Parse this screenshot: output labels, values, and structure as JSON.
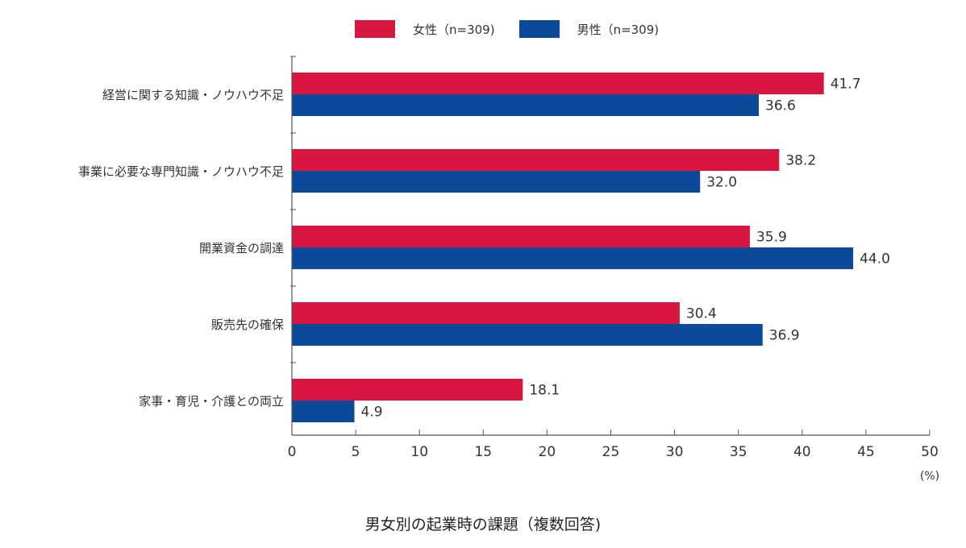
{
  "chart_data": {
    "type": "bar",
    "orientation": "horizontal",
    "title": "男女別の起業時の課題（複数回答)",
    "unit_label": "(%)",
    "categories": [
      "経営に関する知識・ノウハウ不足",
      "事業に必要な専門知識・ノウハウ不足",
      "開業資金の調達",
      "販売先の確保",
      "家事・育児・介護との両立"
    ],
    "series": [
      {
        "name": "女性（n=309)",
        "color": "#d7173f",
        "values": [
          41.7,
          38.2,
          35.9,
          30.4,
          18.1
        ]
      },
      {
        "name": "男性（n=309)",
        "color": "#0a4a99",
        "values": [
          36.6,
          32.0,
          44.0,
          36.9,
          4.9
        ]
      }
    ],
    "xlim": [
      0,
      50
    ],
    "xticks": [
      0,
      5,
      10,
      15,
      20,
      25,
      30,
      35,
      40,
      45,
      50
    ],
    "legend_position": "top-center",
    "grid": false
  }
}
